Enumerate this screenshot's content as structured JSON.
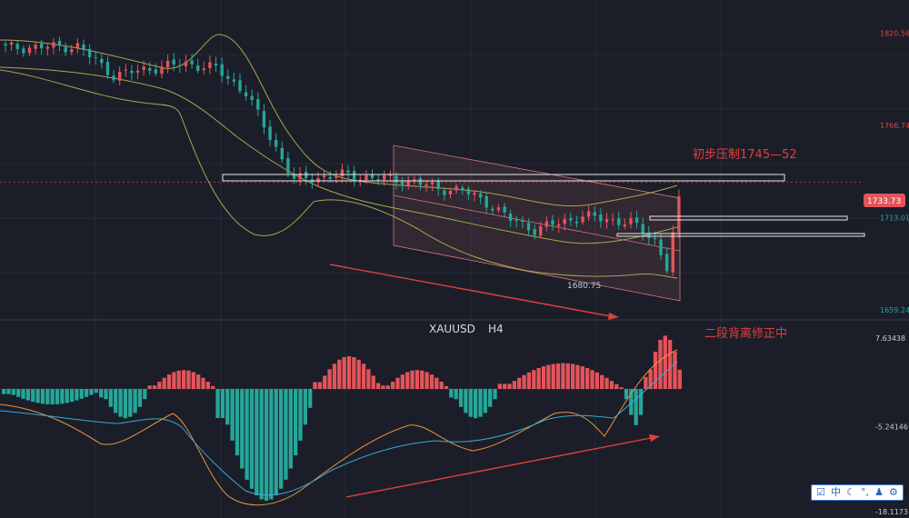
{
  "chart_data": [
    {
      "type": "candlestick",
      "symbol": "XAUUSD",
      "timeframe": "H4",
      "ylim": [
        1655,
        1840
      ],
      "y_ticks": [
        {
          "label": "1820.56",
          "value": 1820.56,
          "color": "#e0403f"
        },
        {
          "label": "1766.74",
          "value": 1766.74,
          "color": "#e0403f"
        },
        {
          "label": "1713.01",
          "value": 1713.01,
          "color": "#26a69a"
        },
        {
          "label": "1659.24",
          "value": 1659.24,
          "color": "#26a69a"
        }
      ],
      "current_price": {
        "label": "1733.73",
        "value": 1733.73
      },
      "low_marker": {
        "label": "1680.75",
        "value": 1680.75
      },
      "annotations": {
        "resistance": "初步压制1745—52",
        "divergence": "二段背离修正中"
      },
      "overlays": [
        "bollinger-bands",
        "descending-channel",
        "horizontal-levels",
        "trend-arrow"
      ]
    },
    {
      "type": "histogram",
      "indicator": "MACD",
      "ylim": [
        -18.11731,
        9.5
      ],
      "y_ticks": [
        {
          "label": "7.63438",
          "value": 7.63438
        },
        {
          "label": "-5.24146",
          "value": -5.24146
        },
        {
          "label": "-18.11731",
          "value": -18.11731
        }
      ],
      "colors": {
        "positive": "#e3545a",
        "negative": "#26a69a",
        "dif": "#e8943a",
        "dea": "#3aa9d6"
      }
    }
  ],
  "dates": [
    "",
    "",
    "",
    "",
    "",
    ""
  ],
  "toolbar": {
    "items": [
      {
        "name": "toolbar-check-icon",
        "glyph": "☑"
      },
      {
        "name": "toolbar-zh-label",
        "glyph": "中"
      },
      {
        "name": "toolbar-moon-icon",
        "glyph": "☾"
      },
      {
        "name": "toolbar-dots-icon",
        "glyph": "°,"
      },
      {
        "name": "toolbar-user-icon",
        "glyph": "♟"
      },
      {
        "name": "toolbar-gear-icon",
        "glyph": "⚙"
      }
    ]
  }
}
